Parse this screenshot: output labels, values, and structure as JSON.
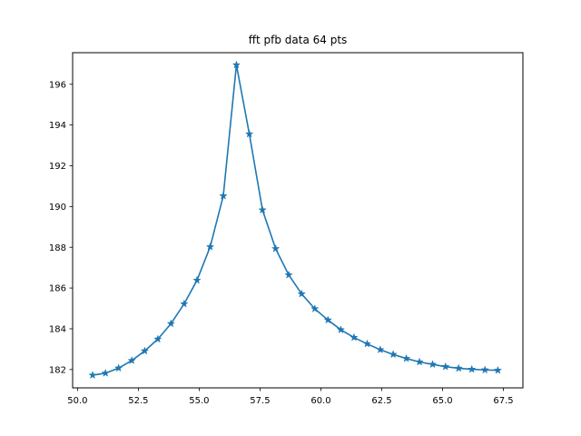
{
  "chart_data": {
    "type": "line",
    "title": "fft pfb data 64 pts",
    "xlabel": "",
    "ylabel": "",
    "xlim": [
      49.8,
      68.3
    ],
    "ylim": [
      181.1,
      197.55
    ],
    "x_ticks": [
      50.0,
      52.5,
      55.0,
      57.5,
      60.0,
      62.5,
      65.0,
      67.5
    ],
    "x_tick_labels": [
      "50.0",
      "52.5",
      "55.0",
      "57.5",
      "60.0",
      "62.5",
      "65.0",
      "67.5"
    ],
    "y_ticks": [
      182,
      184,
      186,
      188,
      190,
      192,
      194,
      196
    ],
    "y_tick_labels": [
      "182",
      "184",
      "186",
      "188",
      "190",
      "192",
      "194",
      "196"
    ],
    "grid": false,
    "marker": "star",
    "series": [
      {
        "color": "#1f77b4",
        "x": [
          50.62,
          51.15,
          51.69,
          52.23,
          52.76,
          53.3,
          53.84,
          54.38,
          54.91,
          55.45,
          55.99,
          56.53,
          57.06,
          57.6,
          58.14,
          58.68,
          59.21,
          59.75,
          60.29,
          60.82,
          61.36,
          61.9,
          62.44,
          62.97,
          63.51,
          64.05,
          64.59,
          65.12,
          65.66,
          66.2,
          66.74,
          67.27
        ],
        "y": [
          181.72,
          181.82,
          182.07,
          182.44,
          182.91,
          183.49,
          184.25,
          185.22,
          186.38,
          188.02,
          190.52,
          196.95,
          193.56,
          189.83,
          187.93,
          186.64,
          185.71,
          184.98,
          184.43,
          183.95,
          183.57,
          183.26,
          182.97,
          182.74,
          182.54,
          182.37,
          182.25,
          182.14,
          182.06,
          182.01,
          181.98,
          181.96
        ]
      }
    ]
  }
}
